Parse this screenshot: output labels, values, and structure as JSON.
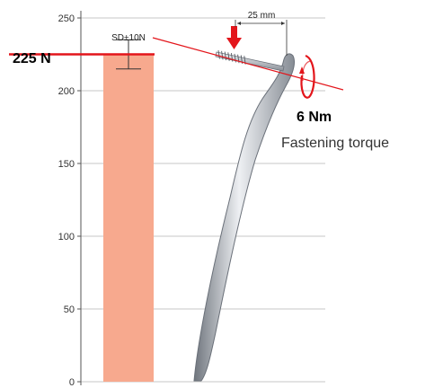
{
  "chart_data": {
    "type": "bar",
    "categories": [
      ""
    ],
    "values": [
      225
    ],
    "ylim": [
      0,
      250
    ],
    "yticks": [
      0,
      50,
      100,
      150,
      200,
      250
    ],
    "grid": true,
    "error_bar": 10,
    "annotations": {
      "force_label": "225 N",
      "sd_label": "SD±10N",
      "torque_value": "6 Nm",
      "torque_caption": "Fastening torque",
      "distance_label": "25 mm"
    }
  },
  "colors": {
    "bar": "#f7a98e",
    "accent_red": "#e3151b",
    "grid": "#b4b4b4",
    "axis": "#555555",
    "implant_light": "#d9dce0",
    "implant_dark": "#7d838b"
  },
  "icons": {
    "force_arrow": "down-arrow-icon",
    "torque": "rotation-arrow-icon",
    "implant": "intramedullary-nail-illustration",
    "screw": "screw-illustration"
  }
}
